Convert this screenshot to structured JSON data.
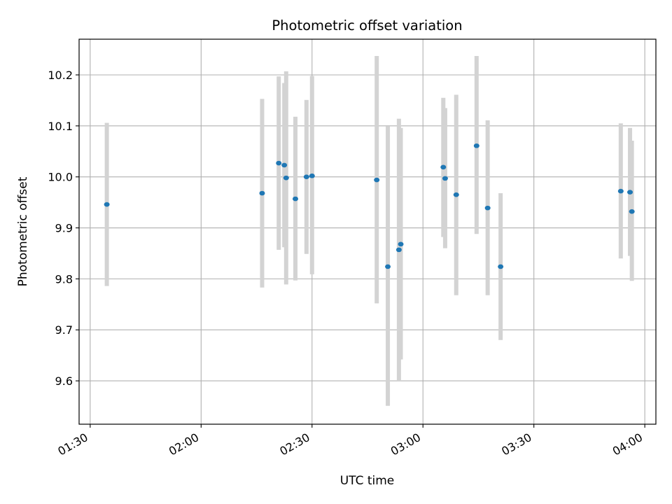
{
  "chart_data": {
    "type": "scatter",
    "title": "Photometric offset variation",
    "xlabel": "UTC time",
    "ylabel": "Photometric offset",
    "x_unit": "HH:MM UTC",
    "xlim": [
      "01:27",
      "04:03"
    ],
    "ylim": [
      9.515,
      10.27
    ],
    "x_ticks": [
      "01:30",
      "02:00",
      "02:30",
      "03:00",
      "03:30",
      "04:00"
    ],
    "y_ticks": [
      9.6,
      9.7,
      9.8,
      9.9,
      10.0,
      10.1,
      10.2
    ],
    "y_tick_labels": [
      "9.6",
      "9.7",
      "9.8",
      "9.9",
      "10.0",
      "10.1",
      "10.2"
    ],
    "grid": true,
    "marker_color": "#1f77b4",
    "errorbar_color": "#d3d3d3",
    "points": [
      {
        "x": "01:34:30",
        "y": 9.946,
        "ylo": 9.786,
        "yhi": 10.106
      },
      {
        "x": "02:16:30",
        "y": 9.968,
        "ylo": 9.783,
        "yhi": 10.153
      },
      {
        "x": "02:21:00",
        "y": 10.027,
        "ylo": 9.857,
        "yhi": 10.197
      },
      {
        "x": "02:22:30",
        "y": 10.023,
        "ylo": 9.862,
        "yhi": 10.184
      },
      {
        "x": "02:23:00",
        "y": 9.998,
        "ylo": 9.789,
        "yhi": 10.207
      },
      {
        "x": "02:25:30",
        "y": 9.957,
        "ylo": 9.797,
        "yhi": 10.118
      },
      {
        "x": "02:28:30",
        "y": 10.0,
        "ylo": 9.849,
        "yhi": 10.151
      },
      {
        "x": "02:30:00",
        "y": 10.002,
        "ylo": 9.809,
        "yhi": 10.198
      },
      {
        "x": "02:47:30",
        "y": 9.994,
        "ylo": 9.752,
        "yhi": 10.237
      },
      {
        "x": "02:50:30",
        "y": 9.824,
        "ylo": 9.551,
        "yhi": 10.099
      },
      {
        "x": "02:53:30",
        "y": 9.857,
        "ylo": 9.6,
        "yhi": 10.114
      },
      {
        "x": "02:54:00",
        "y": 9.868,
        "ylo": 9.642,
        "yhi": 10.096
      },
      {
        "x": "03:05:30",
        "y": 10.019,
        "ylo": 9.882,
        "yhi": 10.155
      },
      {
        "x": "03:06:00",
        "y": 9.997,
        "ylo": 9.86,
        "yhi": 10.135
      },
      {
        "x": "03:09:00",
        "y": 9.965,
        "ylo": 9.768,
        "yhi": 10.161
      },
      {
        "x": "03:14:30",
        "y": 10.061,
        "ylo": 9.888,
        "yhi": 10.237
      },
      {
        "x": "03:17:30",
        "y": 9.939,
        "ylo": 9.768,
        "yhi": 10.111
      },
      {
        "x": "03:21:00",
        "y": 9.824,
        "ylo": 9.68,
        "yhi": 9.968
      },
      {
        "x": "03:53:30",
        "y": 9.972,
        "ylo": 9.84,
        "yhi": 10.105
      },
      {
        "x": "03:56:00",
        "y": 9.97,
        "ylo": 9.845,
        "yhi": 10.096
      },
      {
        "x": "03:56:30",
        "y": 9.932,
        "ylo": 9.796,
        "yhi": 10.071
      }
    ]
  }
}
